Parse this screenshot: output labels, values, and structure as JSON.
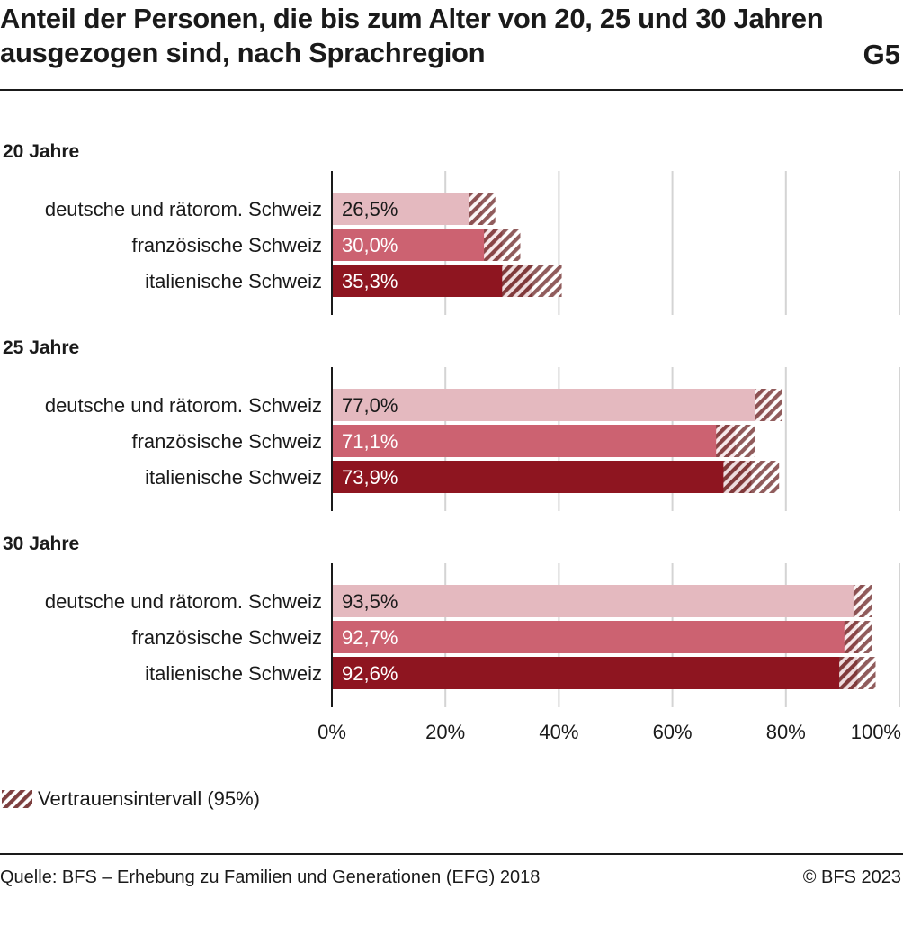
{
  "header": {
    "title": "Anteil der Personen, die bis zum Alter von 20, 25 und 30 Jahren ausgezogen sind, nach Sprachregion",
    "chart_id": "G5"
  },
  "colors": {
    "light": "#e4b9bf",
    "mid": "#cc6271",
    "dark": "#8e1520",
    "ci_hatch": "#7d3f3f",
    "grid": "#d4d4d4",
    "text": "#1a1a1a"
  },
  "legend": {
    "ci_label": "Vertrauensintervall (95%)"
  },
  "footer": {
    "source": "Quelle: BFS – Erhebung zu Familien und Generationen (EFG) 2018",
    "copyright": "© BFS 2023"
  },
  "chart_data": {
    "type": "bar",
    "orientation": "horizontal",
    "x_ticks": [
      "0%",
      "20%",
      "40%",
      "60%",
      "80%",
      "100%"
    ],
    "xlim": [
      0,
      100
    ],
    "grid": true,
    "groups": [
      {
        "title": "20 Jahre",
        "bars": [
          {
            "label": "deutsche und rätorom. Schweiz",
            "value": 26.5,
            "value_label": "26,5%",
            "ci": [
              24.2,
              28.8
            ]
          },
          {
            "label": "französische Schweiz",
            "value": 30.0,
            "value_label": "30,0%",
            "ci": [
              26.8,
              33.2
            ]
          },
          {
            "label": "italienische Schweiz",
            "value": 35.3,
            "value_label": "35,3%",
            "ci": [
              30.0,
              40.5
            ]
          }
        ]
      },
      {
        "title": "25 Jahre",
        "bars": [
          {
            "label": "deutsche und rätorom. Schweiz",
            "value": 77.0,
            "value_label": "77,0%",
            "ci": [
              74.6,
              79.4
            ]
          },
          {
            "label": "französische Schweiz",
            "value": 71.1,
            "value_label": "71,1%",
            "ci": [
              67.7,
              74.5
            ]
          },
          {
            "label": "italienische Schweiz",
            "value": 73.9,
            "value_label": "73,9%",
            "ci": [
              69.0,
              78.8
            ]
          }
        ]
      },
      {
        "title": "30 Jahre",
        "bars": [
          {
            "label": "deutsche und rätorom. Schweiz",
            "value": 93.5,
            "value_label": "93,5%",
            "ci": [
              91.9,
              95.1
            ]
          },
          {
            "label": "französische Schweiz",
            "value": 92.7,
            "value_label": "92,7%",
            "ci": [
              90.3,
              95.1
            ]
          },
          {
            "label": "italienische Schweiz",
            "value": 92.6,
            "value_label": "92,6%",
            "ci": [
              89.4,
              95.8
            ]
          }
        ]
      }
    ]
  }
}
